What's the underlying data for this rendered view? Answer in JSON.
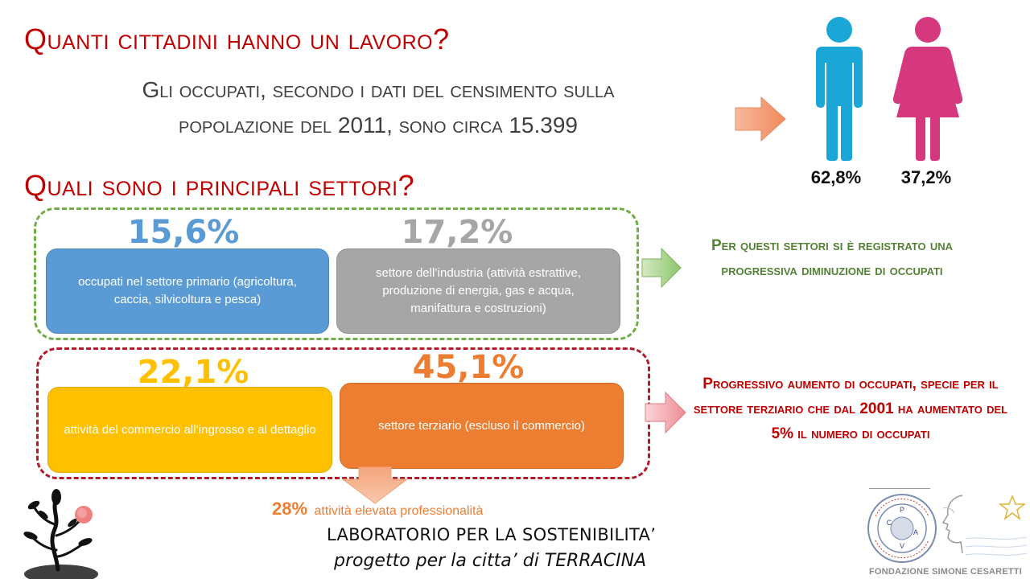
{
  "title_main": "Quanti cittadini hanno un lavoro?",
  "subtitle_line1": "Gli occupati, secondo i dati del censimento sulla",
  "subtitle_line2": "popolazione del 2011, sono circa 15.399",
  "title_sectors": "Quali sono i principali settori?",
  "gender": {
    "male_pct": "62,8%",
    "female_pct": "37,2%",
    "male_color": "#1aa7d8",
    "female_color": "#d6387e"
  },
  "sectors": {
    "primary": {
      "pct": "15,6%",
      "label": "occupati nel settore primario (agricoltura, caccia, silvicoltura e pesca)",
      "color": "#5b9bd5"
    },
    "industry": {
      "pct": "17,2%",
      "label": "settore dell’industria (attività estrattive, produzione di energia, gas e acqua, manifattura e costruzioni)",
      "color": "#a6a6a6"
    },
    "commerce": {
      "pct": "22,1%",
      "label": "attività del commercio all’ingrosso e al dettaglio",
      "color": "#ffc000"
    },
    "tertiary": {
      "pct": "45,1%",
      "label": "settore terziario (escluso il commercio)",
      "color": "#ed7d31"
    }
  },
  "note_green": "Per questi settori si è registrato una progressiva diminuzione di occupati",
  "note_red": "Progressivo aumento di occupati, specie per il settore terziario che dal 2001 ha aumentato del 5% il numero di occupati",
  "professional": {
    "pct": "28%",
    "label": "attività elevata professionalità"
  },
  "lab_line1": "LABORATORIO PER LA SOSTENIBILITA’",
  "lab_line2": "progetto per la citta’ di TERRACINA",
  "foundation": {
    "name": "FONDAZIONE SIMONE CESARETTI",
    "seal_letters": [
      "C",
      "P",
      "A",
      "V"
    ],
    "seal_text": "VALORI · CONOSCENZA · AMBIENTE · PARTECIPAZIONE"
  }
}
